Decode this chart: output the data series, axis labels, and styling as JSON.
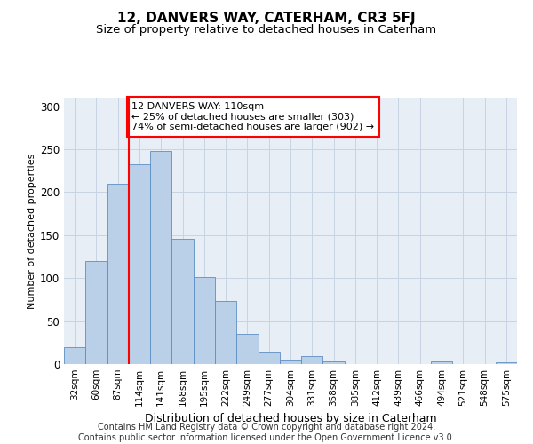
{
  "title": "12, DANVERS WAY, CATERHAM, CR3 5FJ",
  "subtitle": "Size of property relative to detached houses in Caterham",
  "xlabel": "Distribution of detached houses by size in Caterham",
  "ylabel": "Number of detached properties",
  "categories": [
    "32sqm",
    "60sqm",
    "87sqm",
    "114sqm",
    "141sqm",
    "168sqm",
    "195sqm",
    "222sqm",
    "249sqm",
    "277sqm",
    "304sqm",
    "331sqm",
    "358sqm",
    "385sqm",
    "412sqm",
    "439sqm",
    "466sqm",
    "494sqm",
    "521sqm",
    "548sqm",
    "575sqm"
  ],
  "values": [
    20,
    120,
    210,
    232,
    248,
    146,
    101,
    73,
    35,
    14,
    5,
    9,
    3,
    0,
    0,
    0,
    0,
    3,
    0,
    0,
    2
  ],
  "bar_color": "#bad0e8",
  "bar_edge_color": "#5b8ec4",
  "vline_index": 3,
  "vline_color": "red",
  "annotation_line1": "12 DANVERS WAY: 110sqm",
  "annotation_line2": "← 25% of detached houses are smaller (303)",
  "annotation_line3": "74% of semi-detached houses are larger (902) →",
  "annotation_box_facecolor": "white",
  "annotation_box_edgecolor": "red",
  "ylim": [
    0,
    310
  ],
  "yticks": [
    0,
    50,
    100,
    150,
    200,
    250,
    300
  ],
  "bg_color": "#e8eef6",
  "grid_color": "#c8d4e4",
  "title_fontsize": 11,
  "subtitle_fontsize": 9.5,
  "ylabel_fontsize": 8,
  "xlabel_fontsize": 9,
  "tick_fontsize": 7.5,
  "annotation_fontsize": 8,
  "footer_fontsize": 7,
  "footer_line1": "Contains HM Land Registry data © Crown copyright and database right 2024.",
  "footer_line2": "Contains public sector information licensed under the Open Government Licence v3.0."
}
